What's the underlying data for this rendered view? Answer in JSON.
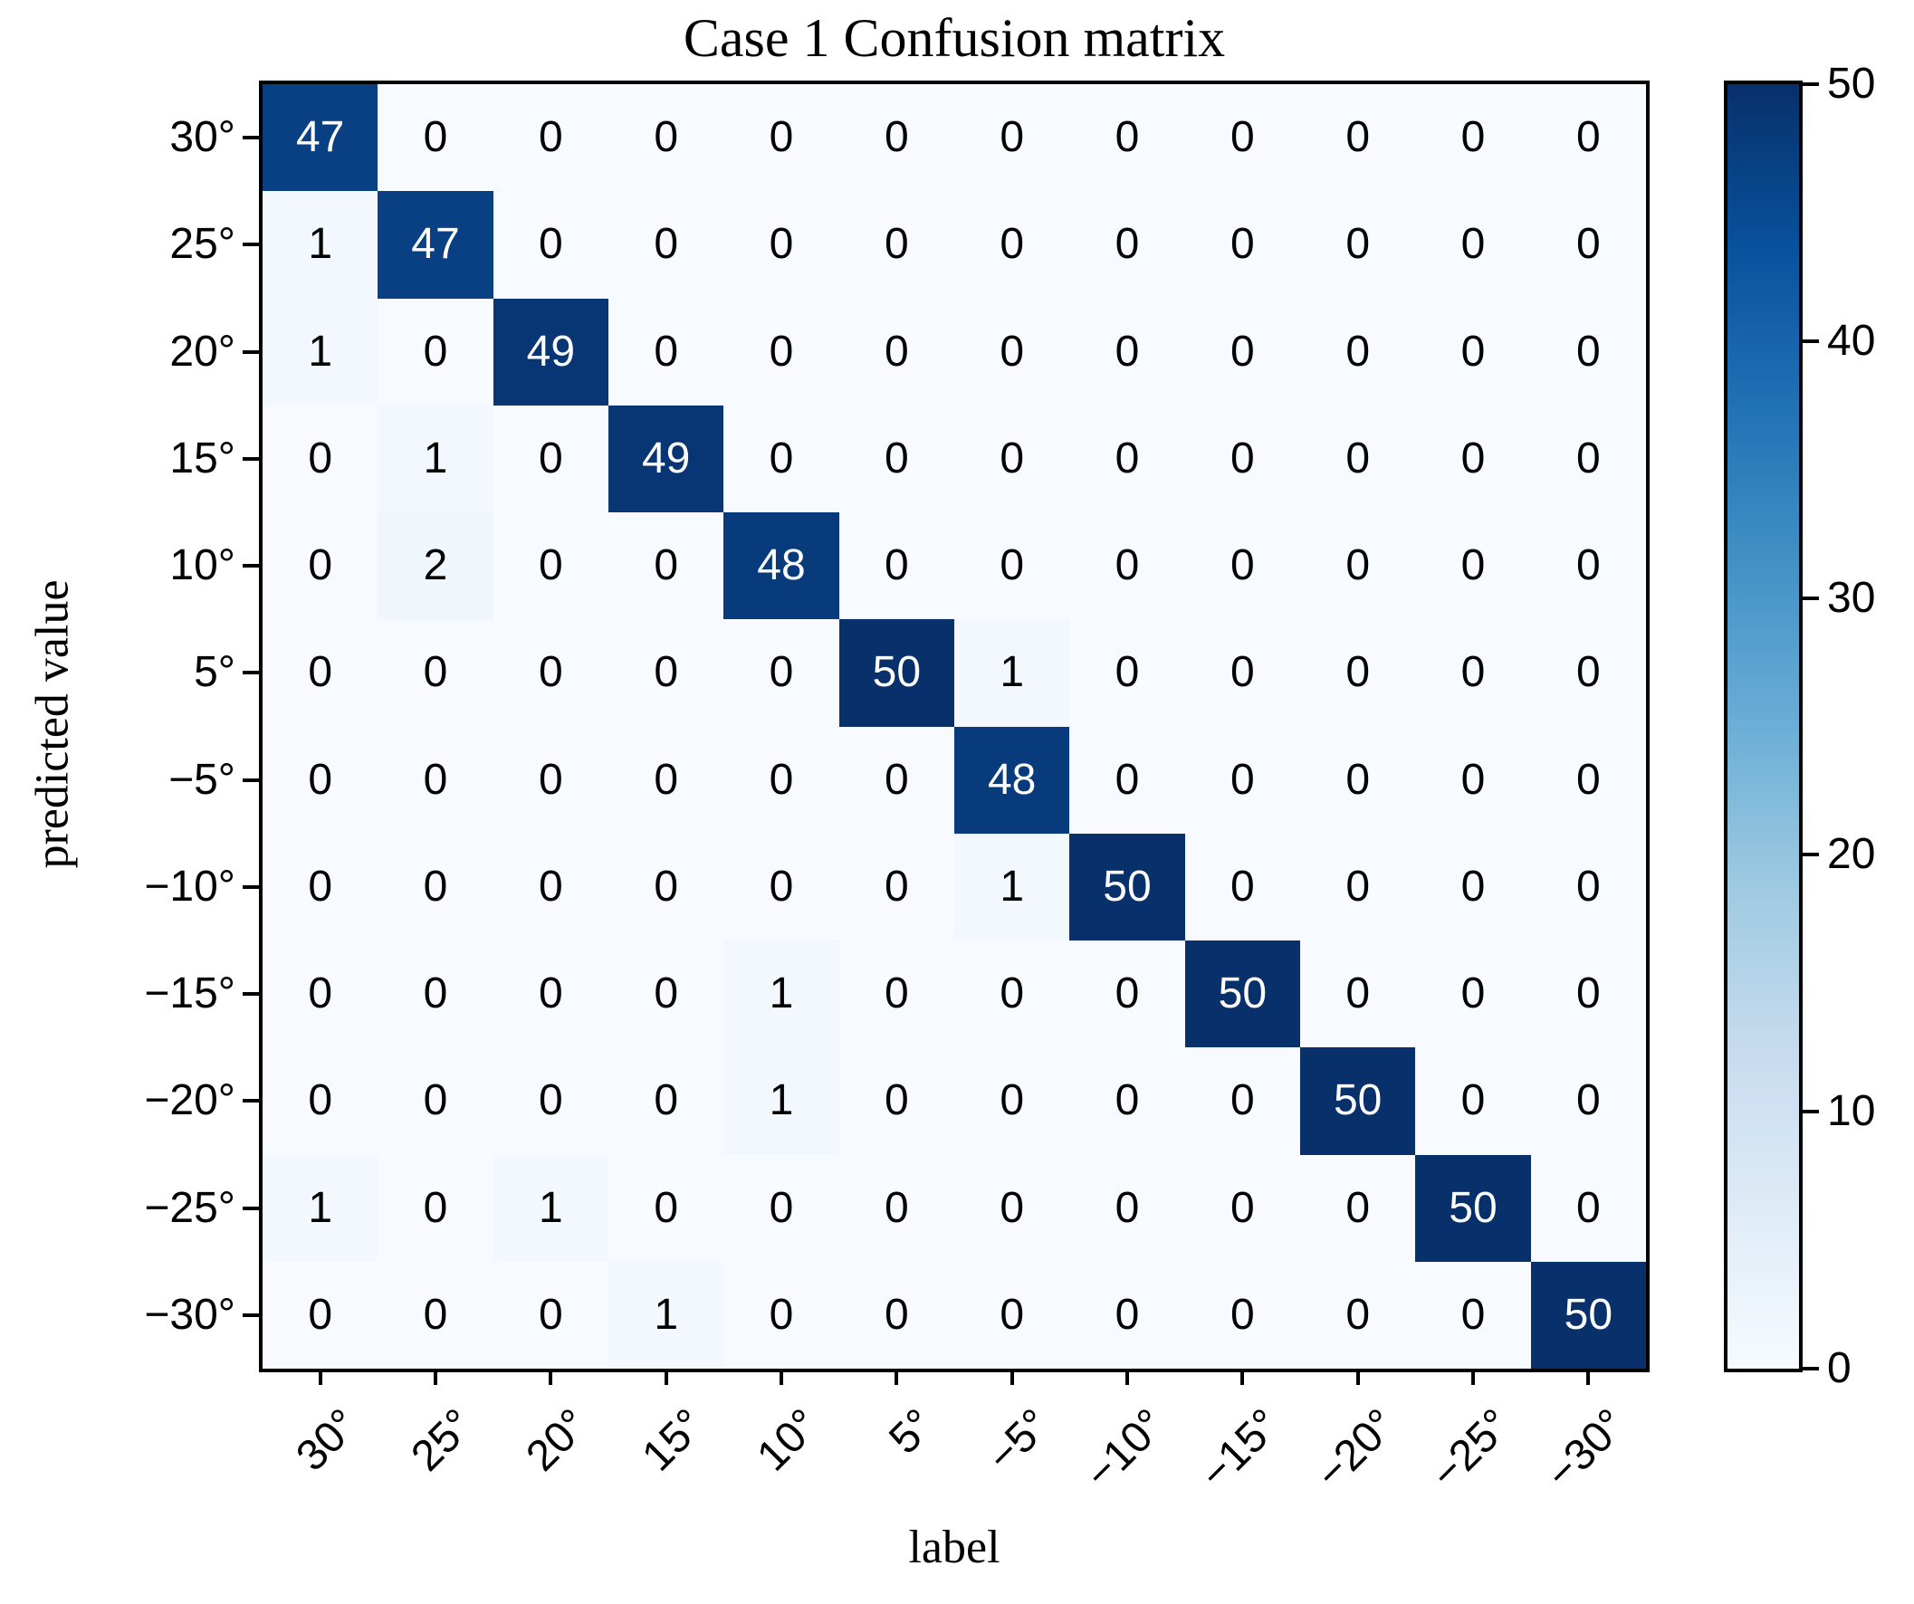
{
  "title": "Case 1 Confusion matrix",
  "chart_data": {
    "type": "heatmap",
    "title": "Case 1 Confusion matrix",
    "xlabel": "label",
    "ylabel": "predicted value",
    "x_categories": [
      "30°",
      "25°",
      "20°",
      "15°",
      "10°",
      "5°",
      "−5°",
      "−10°",
      "−15°",
      "−20°",
      "−25°",
      "−30°"
    ],
    "y_categories": [
      "30°",
      "25°",
      "20°",
      "15°",
      "10°",
      "5°",
      "−5°",
      "−10°",
      "−15°",
      "−20°",
      "−25°",
      "−30°"
    ],
    "matrix": [
      [
        47,
        0,
        0,
        0,
        0,
        0,
        0,
        0,
        0,
        0,
        0,
        0
      ],
      [
        1,
        47,
        0,
        0,
        0,
        0,
        0,
        0,
        0,
        0,
        0,
        0
      ],
      [
        1,
        0,
        49,
        0,
        0,
        0,
        0,
        0,
        0,
        0,
        0,
        0
      ],
      [
        0,
        1,
        0,
        49,
        0,
        0,
        0,
        0,
        0,
        0,
        0,
        0
      ],
      [
        0,
        2,
        0,
        0,
        48,
        0,
        0,
        0,
        0,
        0,
        0,
        0
      ],
      [
        0,
        0,
        0,
        0,
        0,
        50,
        1,
        0,
        0,
        0,
        0,
        0
      ],
      [
        0,
        0,
        0,
        0,
        0,
        0,
        48,
        0,
        0,
        0,
        0,
        0
      ],
      [
        0,
        0,
        0,
        0,
        0,
        0,
        1,
        50,
        0,
        0,
        0,
        0
      ],
      [
        0,
        0,
        0,
        0,
        1,
        0,
        0,
        0,
        50,
        0,
        0,
        0
      ],
      [
        0,
        0,
        0,
        0,
        1,
        0,
        0,
        0,
        0,
        50,
        0,
        0
      ],
      [
        1,
        0,
        1,
        0,
        0,
        0,
        0,
        0,
        0,
        0,
        50,
        0
      ],
      [
        0,
        0,
        0,
        1,
        0,
        0,
        0,
        0,
        0,
        0,
        0,
        50
      ]
    ],
    "value_min": 0,
    "value_max": 50,
    "colorbar": {
      "position": "right",
      "ticks": [
        0,
        10,
        20,
        30,
        40,
        50
      ]
    },
    "colormap": {
      "name": "Blues",
      "stops": [
        {
          "t": 0.0,
          "color": "#f7fbff"
        },
        {
          "t": 0.125,
          "color": "#deebf7"
        },
        {
          "t": 0.25,
          "color": "#c6dbef"
        },
        {
          "t": 0.375,
          "color": "#9ecae1"
        },
        {
          "t": 0.5,
          "color": "#6baed6"
        },
        {
          "t": 0.625,
          "color": "#4292c6"
        },
        {
          "t": 0.75,
          "color": "#2171b5"
        },
        {
          "t": 0.875,
          "color": "#08519c"
        },
        {
          "t": 1.0,
          "color": "#08306b"
        }
      ]
    },
    "cell_text_colors": {
      "light": "#ffffff",
      "dark": "#000000"
    },
    "grid": false,
    "legend_position": "right-colorbar"
  }
}
